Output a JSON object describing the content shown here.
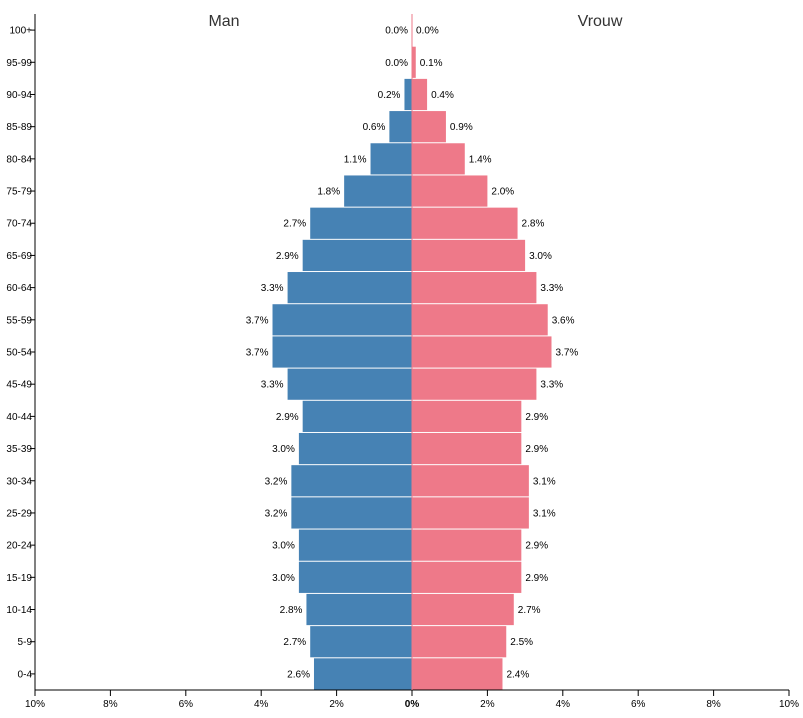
{
  "chart_data": {
    "type": "bar",
    "subtype": "population-pyramid",
    "categories": [
      "100+",
      "95-99",
      "90-94",
      "85-89",
      "80-84",
      "75-79",
      "70-74",
      "65-69",
      "60-64",
      "55-59",
      "50-54",
      "45-49",
      "40-44",
      "35-39",
      "30-34",
      "25-29",
      "20-24",
      "15-19",
      "10-14",
      "5-9",
      "0-4"
    ],
    "series": [
      {
        "name": "Man",
        "color": "#4682b4",
        "values": [
          0.0,
          0.0,
          0.2,
          0.6,
          1.1,
          1.8,
          2.7,
          2.9,
          3.3,
          3.7,
          3.7,
          3.3,
          2.9,
          3.0,
          3.2,
          3.2,
          3.0,
          3.0,
          2.8,
          2.7,
          2.6
        ],
        "labels": [
          "0.0%",
          "0.0%",
          "0.2%",
          "0.6%",
          "1.1%",
          "1.8%",
          "2.7%",
          "2.9%",
          "3.3%",
          "3.7%",
          "3.7%",
          "3.3%",
          "2.9%",
          "3.0%",
          "3.2%",
          "3.2%",
          "3.0%",
          "3.0%",
          "2.8%",
          "2.7%",
          "2.6%"
        ]
      },
      {
        "name": "Vrouw",
        "color": "#ee7989",
        "values": [
          0.0,
          0.1,
          0.4,
          0.9,
          1.4,
          2.0,
          2.8,
          3.0,
          3.3,
          3.6,
          3.7,
          3.3,
          2.9,
          2.9,
          3.1,
          3.1,
          2.9,
          2.9,
          2.7,
          2.5,
          2.4
        ],
        "labels": [
          "0.0%",
          "0.1%",
          "0.4%",
          "0.9%",
          "1.4%",
          "2.0%",
          "2.8%",
          "3.0%",
          "3.3%",
          "3.6%",
          "3.7%",
          "3.3%",
          "2.9%",
          "2.9%",
          "3.1%",
          "3.1%",
          "2.9%",
          "2.9%",
          "2.7%",
          "2.5%",
          "2.4%"
        ]
      }
    ],
    "xlim": [
      -10,
      10
    ],
    "xticks": [
      -10,
      -8,
      -6,
      -4,
      -2,
      0,
      2,
      4,
      6,
      8,
      10
    ],
    "xtick_labels": [
      "10%",
      "8%",
      "6%",
      "4%",
      "2%",
      "0%",
      "2%",
      "4%",
      "6%",
      "8%",
      "10%"
    ],
    "grid": false
  }
}
